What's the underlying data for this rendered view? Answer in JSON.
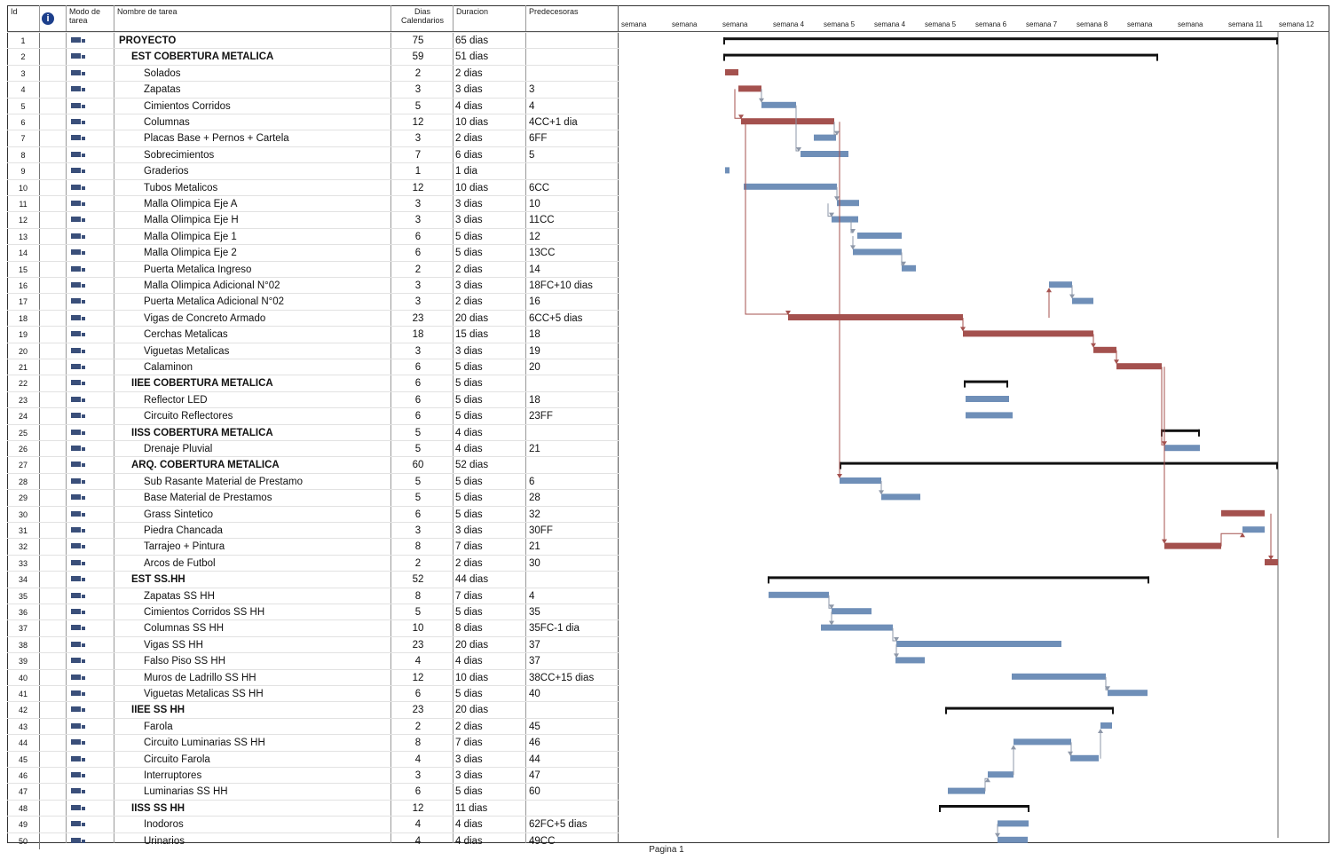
{
  "header": {
    "id": "Id",
    "info": "i",
    "mode": "Modo de tarea",
    "name": "Nombre de tarea",
    "dias": "Dias Calendarios",
    "duration": "Duracion",
    "predecessors": "Predecesoras"
  },
  "timeline": [
    "semana",
    "semana",
    "semana",
    "semana 4",
    "semana 5",
    "semana 4",
    "semana 5",
    "semana 6",
    "semana 7",
    "semana 8",
    "semana",
    "semana",
    "semana 11",
    "semana 12"
  ],
  "tasks": [
    {
      "id": "1",
      "name": "PROYECTO",
      "dias": "75",
      "dur": "65 dias",
      "pred": "",
      "summary": true,
      "lvl": 0
    },
    {
      "id": "2",
      "name": "EST COBERTURA METALICA",
      "dias": "59",
      "dur": "51 dias",
      "pred": "",
      "summary": true,
      "lvl": 1
    },
    {
      "id": "3",
      "name": "Solados",
      "dias": "2",
      "dur": "2 dias",
      "pred": "",
      "summary": false,
      "lvl": 2
    },
    {
      "id": "4",
      "name": "Zapatas",
      "dias": "3",
      "dur": "3 dias",
      "pred": "3",
      "summary": false,
      "lvl": 2
    },
    {
      "id": "5",
      "name": "Cimientos Corridos",
      "dias": "5",
      "dur": "4 dias",
      "pred": "4",
      "summary": false,
      "lvl": 2
    },
    {
      "id": "6",
      "name": "Columnas",
      "dias": "12",
      "dur": "10 dias",
      "pred": "4CC+1 dia",
      "summary": false,
      "lvl": 2
    },
    {
      "id": "7",
      "name": "Placas Base + Pernos + Cartela",
      "dias": "3",
      "dur": "2 dias",
      "pred": "6FF",
      "summary": false,
      "lvl": 2
    },
    {
      "id": "8",
      "name": "Sobrecimientos",
      "dias": "7",
      "dur": "6 dias",
      "pred": "5",
      "summary": false,
      "lvl": 2
    },
    {
      "id": "9",
      "name": "Graderios",
      "dias": "1",
      "dur": "1 dia",
      "pred": "",
      "summary": false,
      "lvl": 2
    },
    {
      "id": "10",
      "name": "Tubos Metalicos",
      "dias": "12",
      "dur": "10 dias",
      "pred": "6CC",
      "summary": false,
      "lvl": 2
    },
    {
      "id": "11",
      "name": "Malla Olimpica Eje A",
      "dias": "3",
      "dur": "3 dias",
      "pred": "10",
      "summary": false,
      "lvl": 2
    },
    {
      "id": "12",
      "name": "Malla Olimpica Eje H",
      "dias": "3",
      "dur": "3 dias",
      "pred": "11CC",
      "summary": false,
      "lvl": 2
    },
    {
      "id": "13",
      "name": "Malla Olimpica Eje 1",
      "dias": "6",
      "dur": "5 dias",
      "pred": "12",
      "summary": false,
      "lvl": 2
    },
    {
      "id": "14",
      "name": "Malla Olimpica Eje 2",
      "dias": "6",
      "dur": "5 dias",
      "pred": "13CC",
      "summary": false,
      "lvl": 2
    },
    {
      "id": "15",
      "name": "Puerta Metalica Ingreso",
      "dias": "2",
      "dur": "2 dias",
      "pred": "14",
      "summary": false,
      "lvl": 2
    },
    {
      "id": "16",
      "name": "Malla Olimpica Adicional N°02",
      "dias": "3",
      "dur": "3 dias",
      "pred": "18FC+10 dias",
      "summary": false,
      "lvl": 2
    },
    {
      "id": "17",
      "name": "Puerta Metalica Adicional N°02",
      "dias": "3",
      "dur": "2 dias",
      "pred": "16",
      "summary": false,
      "lvl": 2
    },
    {
      "id": "18",
      "name": "Vigas de Concreto Armado",
      "dias": "23",
      "dur": "20 dias",
      "pred": "6CC+5 dias",
      "summary": false,
      "lvl": 2
    },
    {
      "id": "19",
      "name": "Cerchas Metalicas",
      "dias": "18",
      "dur": "15 dias",
      "pred": "18",
      "summary": false,
      "lvl": 2
    },
    {
      "id": "20",
      "name": "Viguetas Metalicas",
      "dias": "3",
      "dur": "3 dias",
      "pred": "19",
      "summary": false,
      "lvl": 2
    },
    {
      "id": "21",
      "name": "Calaminon",
      "dias": "6",
      "dur": "5 dias",
      "pred": "20",
      "summary": false,
      "lvl": 2
    },
    {
      "id": "22",
      "name": "IIEE COBERTURA METALICA",
      "dias": "6",
      "dur": "5 dias",
      "pred": "",
      "summary": true,
      "lvl": 1
    },
    {
      "id": "23",
      "name": "Reflector LED",
      "dias": "6",
      "dur": "5 dias",
      "pred": "18",
      "summary": false,
      "lvl": 2
    },
    {
      "id": "24",
      "name": "Circuito Reflectores",
      "dias": "6",
      "dur": "5 dias",
      "pred": "23FF",
      "summary": false,
      "lvl": 2
    },
    {
      "id": "25",
      "name": "IISS COBERTURA METALICA",
      "dias": "5",
      "dur": "4 dias",
      "pred": "",
      "summary": true,
      "lvl": 1
    },
    {
      "id": "26",
      "name": "Drenaje Pluvial",
      "dias": "5",
      "dur": "4 dias",
      "pred": "21",
      "summary": false,
      "lvl": 2
    },
    {
      "id": "27",
      "name": "ARQ. COBERTURA METALICA",
      "dias": "60",
      "dur": "52 dias",
      "pred": "",
      "summary": true,
      "lvl": 1
    },
    {
      "id": "28",
      "name": "Sub Rasante Material de Prestamo",
      "dias": "5",
      "dur": "5 dias",
      "pred": "6",
      "summary": false,
      "lvl": 2
    },
    {
      "id": "29",
      "name": "Base Material de Prestamos",
      "dias": "5",
      "dur": "5 dias",
      "pred": "28",
      "summary": false,
      "lvl": 2
    },
    {
      "id": "30",
      "name": "Grass Sintetico",
      "dias": "6",
      "dur": "5 dias",
      "pred": "32",
      "summary": false,
      "lvl": 2
    },
    {
      "id": "31",
      "name": "Piedra Chancada",
      "dias": "3",
      "dur": "3 dias",
      "pred": "30FF",
      "summary": false,
      "lvl": 2
    },
    {
      "id": "32",
      "name": "Tarrajeo + Pintura",
      "dias": "8",
      "dur": "7 dias",
      "pred": "21",
      "summary": false,
      "lvl": 2
    },
    {
      "id": "33",
      "name": "Arcos de Futbol",
      "dias": "2",
      "dur": "2 dias",
      "pred": "30",
      "summary": false,
      "lvl": 2
    },
    {
      "id": "34",
      "name": "EST SS.HH",
      "dias": "52",
      "dur": "44 dias",
      "pred": "",
      "summary": true,
      "lvl": 1
    },
    {
      "id": "35",
      "name": "Zapatas SS HH",
      "dias": "8",
      "dur": "7 dias",
      "pred": "4",
      "summary": false,
      "lvl": 2
    },
    {
      "id": "36",
      "name": "Cimientos Corridos SS HH",
      "dias": "5",
      "dur": "5 dias",
      "pred": "35",
      "summary": false,
      "lvl": 2
    },
    {
      "id": "37",
      "name": "Columnas SS HH",
      "dias": "10",
      "dur": "8 dias",
      "pred": "35FC-1 dia",
      "summary": false,
      "lvl": 2
    },
    {
      "id": "38",
      "name": "Vigas SS HH",
      "dias": "23",
      "dur": "20 dias",
      "pred": "37",
      "summary": false,
      "lvl": 2
    },
    {
      "id": "39",
      "name": "Falso Piso SS HH",
      "dias": "4",
      "dur": "4 dias",
      "pred": "37",
      "summary": false,
      "lvl": 2
    },
    {
      "id": "40",
      "name": "Muros de Ladrillo SS HH",
      "dias": "12",
      "dur": "10 dias",
      "pred": "38CC+15 dias",
      "summary": false,
      "lvl": 2
    },
    {
      "id": "41",
      "name": "Viguetas Metalicas SS HH",
      "dias": "6",
      "dur": "5 dias",
      "pred": "40",
      "summary": false,
      "lvl": 2
    },
    {
      "id": "42",
      "name": "IIEE SS HH",
      "dias": "23",
      "dur": "20 dias",
      "pred": "",
      "summary": true,
      "lvl": 1
    },
    {
      "id": "43",
      "name": "Farola",
      "dias": "2",
      "dur": "2 dias",
      "pred": "45",
      "summary": false,
      "lvl": 2
    },
    {
      "id": "44",
      "name": "Circuito Luminarias SS HH",
      "dias": "8",
      "dur": "7 dias",
      "pred": "46",
      "summary": false,
      "lvl": 2
    },
    {
      "id": "45",
      "name": "Circuito Farola",
      "dias": "4",
      "dur": "3 dias",
      "pred": "44",
      "summary": false,
      "lvl": 2
    },
    {
      "id": "46",
      "name": "Interruptores",
      "dias": "3",
      "dur": "3 dias",
      "pred": "47",
      "summary": false,
      "lvl": 2
    },
    {
      "id": "47",
      "name": "Luminarias SS HH",
      "dias": "6",
      "dur": "5 dias",
      "pred": "60",
      "summary": false,
      "lvl": 2
    },
    {
      "id": "48",
      "name": "IISS SS HH",
      "dias": "12",
      "dur": "11 dias",
      "pred": "",
      "summary": true,
      "lvl": 1
    },
    {
      "id": "49",
      "name": "Inodoros",
      "dias": "4",
      "dur": "4 dias",
      "pred": "62FC+5 dias",
      "summary": false,
      "lvl": 2
    },
    {
      "id": "50",
      "name": "Urinarios",
      "dias": "4",
      "dur": "4 dias",
      "pred": "49CC",
      "summary": false,
      "lvl": 2
    }
  ],
  "colors": {
    "critical": "#a4514e",
    "normal": "#6f8fb8",
    "summary": "#111111",
    "link_critical": "#a4514e",
    "link_normal": "#8d97a8"
  },
  "footer": "Pagina 1"
}
